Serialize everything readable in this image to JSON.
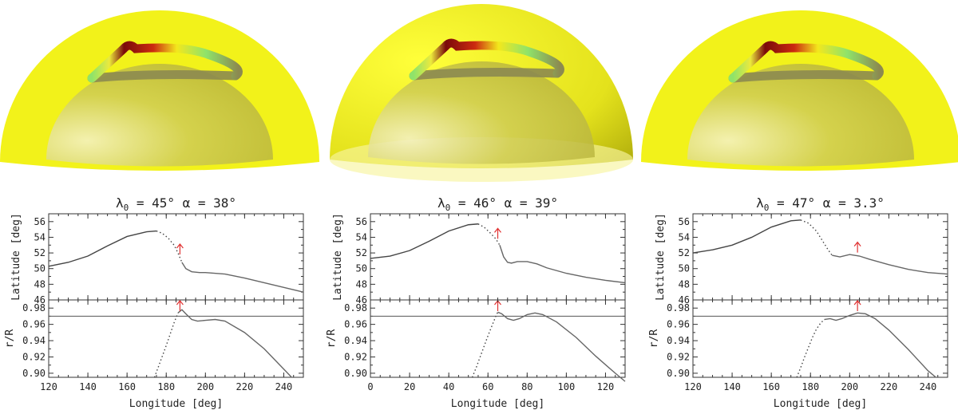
{
  "figure": {
    "panels": [
      {
        "title_lambda": "λ",
        "title_sub": "0",
        "title_rest": " = 45°   α = 38°",
        "arrow_color": "#e03030"
      },
      {
        "title_lambda": "λ",
        "title_sub": "0",
        "title_rest": " = 46°   α = 39°",
        "arrow_color": "#e03030"
      },
      {
        "title_lambda": "λ",
        "title_sub": "0",
        "title_rest": " = 47°   α = 3.3°",
        "arrow_color": "#e03030"
      }
    ],
    "colors": {
      "sphere": "#f2f21a",
      "core": "#c9c94a",
      "curve": "#555555",
      "tube": "#8c8a50"
    }
  },
  "chart_data": [
    {
      "type": "line",
      "title": "λ0 = 45°   α = 38°",
      "xlabel": "Longitude [deg]",
      "xlim": [
        120,
        250
      ],
      "xticks": [
        "120",
        "140",
        "160",
        "180",
        "200",
        "220",
        "240"
      ],
      "top": {
        "ylabel": "Latitude [deg]",
        "ylim": [
          46,
          57
        ],
        "yticks": [
          "46",
          "48",
          "50",
          "52",
          "54",
          "56"
        ],
        "solid_1": {
          "x": [
            120,
            130,
            140,
            150,
            160,
            170,
            175
          ],
          "y": [
            50.3,
            50.8,
            51.6,
            52.9,
            54.1,
            54.7,
            54.8
          ]
        },
        "dotted": {
          "x": [
            175,
            178,
            181,
            184,
            186,
            188
          ],
          "y": [
            54.8,
            54.5,
            53.9,
            53.0,
            52.0,
            50.8
          ]
        },
        "solid_2": {
          "x": [
            188,
            190,
            193,
            197,
            200,
            210,
            220,
            230,
            240,
            250
          ],
          "y": [
            50.8,
            50.0,
            49.6,
            49.5,
            49.5,
            49.3,
            48.8,
            48.2,
            47.6,
            47.0
          ]
        },
        "arrow_x": 187
      },
      "bottom": {
        "ylabel": "r/R",
        "ylim": [
          0.895,
          0.99
        ],
        "yticks": [
          "0.90",
          "0.92",
          "0.94",
          "0.96",
          "0.98"
        ],
        "hline": 0.97,
        "dotted": {
          "x": [
            174,
            176,
            178,
            180,
            182,
            184,
            186
          ],
          "y": [
            0.895,
            0.908,
            0.921,
            0.934,
            0.948,
            0.962,
            0.974
          ]
        },
        "solid": {
          "x": [
            186,
            188,
            190,
            193,
            196,
            200,
            205,
            210,
            220,
            230,
            240,
            244
          ],
          "y": [
            0.974,
            0.978,
            0.973,
            0.966,
            0.964,
            0.965,
            0.966,
            0.964,
            0.95,
            0.93,
            0.905,
            0.895
          ]
        },
        "arrow_x": 187
      }
    },
    {
      "type": "line",
      "title": "λ0 = 46°   α = 39°",
      "xlabel": "Longitude [deg]",
      "xlim": [
        0,
        130
      ],
      "xticks": [
        "0",
        "20",
        "40",
        "60",
        "80",
        "100",
        "120"
      ],
      "top": {
        "ylabel": "Latitude [deg]",
        "ylim": [
          46,
          57
        ],
        "yticks": [
          "46",
          "48",
          "50",
          "52",
          "54",
          "56"
        ],
        "solid_1": {
          "x": [
            0,
            10,
            20,
            30,
            40,
            50,
            55
          ],
          "y": [
            51.3,
            51.6,
            52.3,
            53.5,
            54.8,
            55.6,
            55.7
          ]
        },
        "dotted": {
          "x": [
            55,
            58,
            61,
            64,
            66
          ],
          "y": [
            55.7,
            55.3,
            54.6,
            53.8,
            53.0
          ]
        },
        "solid_2": {
          "x": [
            66,
            68,
            70,
            72,
            75,
            80,
            85,
            90,
            100,
            110,
            120,
            130
          ],
          "y": [
            53.0,
            51.5,
            50.8,
            50.7,
            50.9,
            50.9,
            50.6,
            50.1,
            49.4,
            48.9,
            48.5,
            48.2
          ]
        },
        "arrow_x": 65
      },
      "bottom": {
        "ylabel": "r/R",
        "ylim": [
          0.895,
          0.99
        ],
        "yticks": [
          "0.90",
          "0.92",
          "0.94",
          "0.96",
          "0.98"
        ],
        "hline": 0.97,
        "dotted": {
          "x": [
            52,
            54,
            56,
            58,
            60,
            62,
            64,
            65
          ],
          "y": [
            0.895,
            0.907,
            0.92,
            0.933,
            0.946,
            0.958,
            0.97,
            0.975
          ]
        },
        "solid": {
          "x": [
            65,
            67,
            70,
            73,
            76,
            80,
            84,
            88,
            95,
            105,
            115,
            125,
            130
          ],
          "y": [
            0.975,
            0.973,
            0.967,
            0.965,
            0.967,
            0.972,
            0.974,
            0.972,
            0.963,
            0.944,
            0.921,
            0.9,
            0.89
          ]
        },
        "arrow_x": 65
      }
    },
    {
      "type": "line",
      "title": "λ0 = 47°   α = 3.3°",
      "xlabel": "Longitude [deg]",
      "xlim": [
        120,
        250
      ],
      "xticks": [
        "120",
        "140",
        "160",
        "180",
        "200",
        "220",
        "240"
      ],
      "top": {
        "ylabel": "Latitude [deg]",
        "ylim": [
          46,
          57
        ],
        "yticks": [
          "46",
          "48",
          "50",
          "52",
          "54",
          "56"
        ],
        "solid_1": {
          "x": [
            120,
            130,
            140,
            150,
            160,
            170,
            175
          ],
          "y": [
            52.0,
            52.4,
            53.0,
            54.0,
            55.3,
            56.1,
            56.2
          ]
        },
        "dotted": {
          "x": [
            175,
            179,
            183,
            186,
            189,
            191
          ],
          "y": [
            56.2,
            55.8,
            54.8,
            53.6,
            52.4,
            51.7
          ]
        },
        "solid_2": {
          "x": [
            191,
            195,
            200,
            205,
            210,
            220,
            230,
            240,
            250
          ],
          "y": [
            51.7,
            51.5,
            51.8,
            51.6,
            51.2,
            50.5,
            49.9,
            49.5,
            49.3
          ]
        },
        "arrow_x": 204
      },
      "bottom": {
        "ylabel": "r/R",
        "ylim": [
          0.895,
          0.99
        ],
        "yticks": [
          "0.90",
          "0.92",
          "0.94",
          "0.96",
          "0.98"
        ],
        "hline": 0.97,
        "dotted": {
          "x": [
            173,
            175,
            177,
            179,
            181,
            183,
            185,
            187
          ],
          "y": [
            0.895,
            0.907,
            0.92,
            0.932,
            0.944,
            0.954,
            0.961,
            0.966
          ]
        },
        "solid": {
          "x": [
            187,
            190,
            193,
            196,
            200,
            204,
            208,
            213,
            220,
            230,
            240,
            244
          ],
          "y": [
            0.966,
            0.967,
            0.965,
            0.967,
            0.971,
            0.974,
            0.973,
            0.967,
            0.953,
            0.929,
            0.903,
            0.895
          ]
        },
        "arrow_x": 204
      }
    }
  ]
}
